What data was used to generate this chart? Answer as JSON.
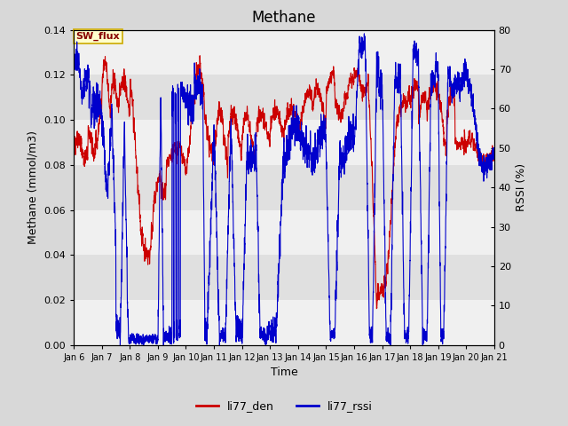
{
  "title": "Methane",
  "ylabel_left": "Methane (mmol/m3)",
  "ylabel_right": "RSSI (%)",
  "xlabel": "Time",
  "legend_label1": "li77_den",
  "legend_label2": "li77_rssi",
  "annotation": "SW_flux",
  "xlim_days": [
    6,
    21
  ],
  "ylim_left": [
    0,
    0.14
  ],
  "ylim_right": [
    0,
    80
  ],
  "yticks_left": [
    0.0,
    0.02,
    0.04,
    0.06,
    0.08,
    0.1,
    0.12,
    0.14
  ],
  "yticks_right": [
    0,
    10,
    20,
    30,
    40,
    50,
    60,
    70,
    80
  ],
  "xtick_labels": [
    "Jan 6",
    "Jan 7",
    "Jan 8",
    "Jan 9",
    "Jan 10",
    "Jan 11",
    "Jan 12",
    "Jan 13",
    "Jan 14",
    "Jan 15",
    "Jan 16",
    "Jan 17",
    "Jan 18",
    "Jan 19",
    "Jan 20",
    "Jan 21"
  ],
  "color_red": "#cc0000",
  "color_blue": "#0000cc",
  "bg_outer": "#d8d8d8",
  "bg_band_light": "#f0f0f0",
  "bg_band_dark": "#e0e0e0",
  "annotation_bg": "#ffffcc",
  "annotation_border": "#ccaa00",
  "linewidth": 0.8,
  "title_fontsize": 12,
  "label_fontsize": 9,
  "tick_fontsize": 8
}
